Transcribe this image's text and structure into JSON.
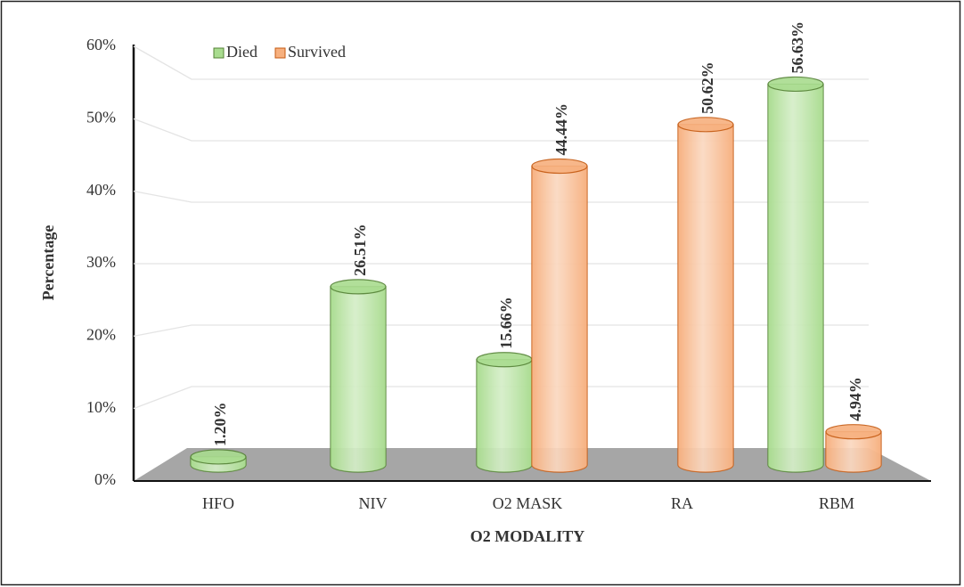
{
  "chart_data": {
    "type": "bar",
    "x_label": "O2 MODALITY",
    "y_label": "Percentage",
    "categories": [
      "HFO",
      "NIV",
      "O2 MASK",
      "RA",
      "RBM"
    ],
    "series": [
      {
        "name": "Died",
        "color": "#a9dc8f",
        "edge": "#548235",
        "values": [
          1.2,
          26.51,
          15.66,
          null,
          56.63
        ],
        "value_labels": [
          "1.20%",
          "26.51%",
          "15.66%",
          null,
          "56.63%"
        ]
      },
      {
        "name": "Survived",
        "color": "#f7b07e",
        "edge": "#c55a11",
        "values": [
          null,
          null,
          44.44,
          50.62,
          4.94
        ],
        "value_labels": [
          null,
          null,
          "44.44%",
          "50.62%",
          "4.94%"
        ]
      }
    ],
    "ylim": [
      0,
      60
    ],
    "yticks": [
      {
        "value": 0,
        "label": "0%"
      },
      {
        "value": 10,
        "label": "10%"
      },
      {
        "value": 20,
        "label": "20%"
      },
      {
        "value": 30,
        "label": "30%"
      },
      {
        "value": 40,
        "label": "40%"
      },
      {
        "value": 50,
        "label": "50%"
      },
      {
        "value": 60,
        "label": "60%"
      }
    ],
    "grid": true,
    "legend": "top-left"
  }
}
